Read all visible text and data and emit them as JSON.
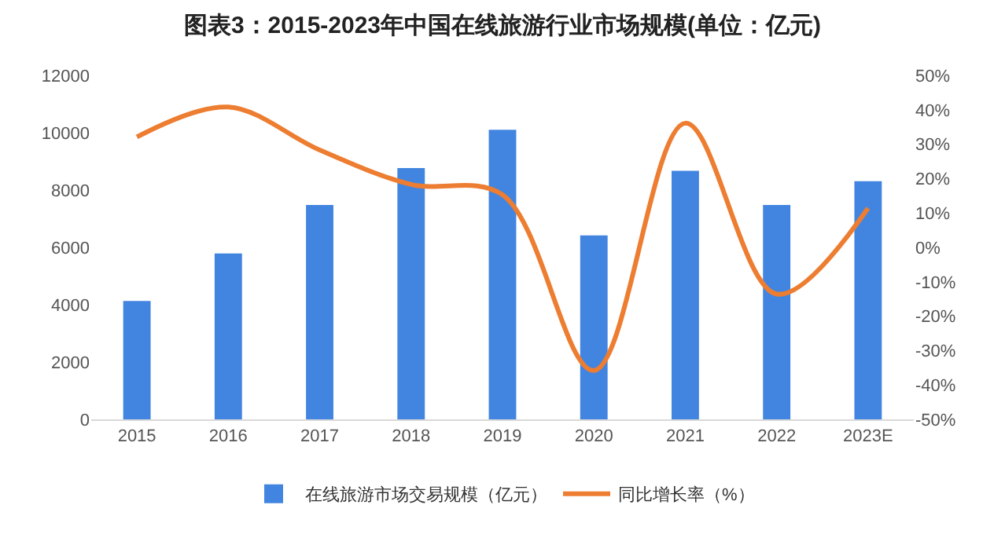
{
  "chart_data": {
    "type": "bar",
    "title": "图表3：2015-2023年中国在线旅游行业市场规模(单位：亿元)",
    "categories": [
      "2015",
      "2016",
      "2017",
      "2018",
      "2019",
      "2020",
      "2021",
      "2022",
      "2023E"
    ],
    "series": [
      {
        "name": "在线旅游市场交易规模（亿元）",
        "color": "#4285e0",
        "values": [
          4130,
          5790,
          7480,
          8770,
          10100,
          6420,
          8670,
          7480,
          8310
        ]
      },
      {
        "name": "同比增长率（%）",
        "type": "line",
        "axis": "y2",
        "color": "#ed7d31",
        "values": [
          32.1,
          40.8,
          28.3,
          18.3,
          15.3,
          -35.8,
          36.1,
          -13.6,
          11.4
        ]
      }
    ],
    "ylim": [
      0,
      12000
    ],
    "yticks": [
      0,
      2000,
      4000,
      6000,
      8000,
      10000,
      12000
    ],
    "y2lim": [
      -50,
      50
    ],
    "y2ticks": [
      {
        "value": -50,
        "label": "-50%"
      },
      {
        "value": -40,
        "label": "-40%"
      },
      {
        "value": -30,
        "label": "-30%"
      },
      {
        "value": -20,
        "label": "-20%"
      },
      {
        "value": -10,
        "label": "-10%"
      },
      {
        "value": 0,
        "label": "0%"
      },
      {
        "value": 10,
        "label": "10%"
      },
      {
        "value": 20,
        "label": "20%"
      },
      {
        "value": 30,
        "label": "30%"
      },
      {
        "value": 40,
        "label": "40%"
      },
      {
        "value": 50,
        "label": "50%"
      }
    ],
    "legend": "bottom",
    "grid": false,
    "marker": "none"
  }
}
